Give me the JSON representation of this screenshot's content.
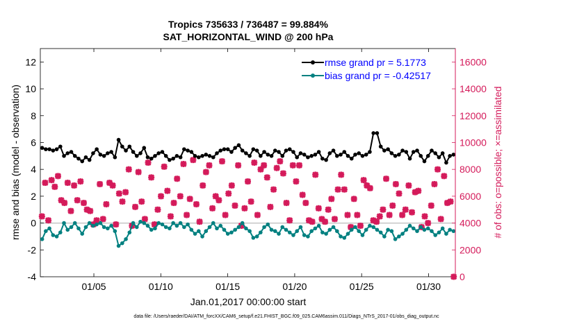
{
  "chart_data": {
    "type": "line",
    "title_line1": "Tropics 735633 / 736487 = 99.884%",
    "title_line2": "SAT_HORIZONTAL_WIND @ 200 hPa",
    "xlabel": "Jan.01,2017 00:00:00 start",
    "ylabel_left": "rmse and bias (model - observation)",
    "ylabel_right": "# of obs: o=possible; ×=assimilated",
    "footnote": "data file: /Users/raeder/DAI/ATM_forcXX/CAM6_setup/f.e21.FHIST_BGC.f09_025.CAM6assim.011/Diags_NTrS_2017-01/obs_diag_output.nc",
    "xlim": [
      1,
      32
    ],
    "x_tick_values": [
      5,
      10,
      15,
      20,
      25,
      30
    ],
    "x_tick_labels": [
      "01/05",
      "01/10",
      "01/15",
      "01/20",
      "01/25",
      "01/30"
    ],
    "ylim_left": [
      -4,
      13
    ],
    "y_left_tick_values": [
      -4,
      -2,
      0,
      2,
      4,
      6,
      8,
      10,
      12
    ],
    "y_left_tick_labels": [
      "-4",
      "-2",
      "0",
      "2",
      "4",
      "6",
      "8",
      "10",
      "12"
    ],
    "ylim_right": [
      0,
      17000
    ],
    "y_right_tick_values": [
      0,
      2000,
      4000,
      6000,
      8000,
      10000,
      12000,
      14000,
      16000
    ],
    "y_right_tick_labels": [
      "0",
      "2000",
      "4000",
      "6000",
      "8000",
      "10000",
      "12000",
      "14000",
      "16000"
    ],
    "legend": [
      "rmse grand pr = 5.1773",
      "bias grand pr = -0.42517"
    ],
    "legend_position": "top-right",
    "series": [
      {
        "name": "rmse",
        "color": "#000000",
        "values": [
          5.6,
          5.5,
          5.5,
          5.4,
          5.5,
          5.7,
          5.0,
          5.2,
          5.3,
          5.0,
          4.8,
          4.6,
          4.9,
          4.7,
          5.2,
          5.5,
          5.1,
          5.0,
          5.2,
          5.3,
          4.9,
          6.2,
          5.7,
          5.4,
          5.7,
          5.3,
          5.0,
          5.2,
          5.6,
          4.9,
          4.8,
          5.0,
          5.2,
          5.3,
          5.0,
          4.7,
          4.8,
          5.0,
          4.9,
          5.5,
          5.4,
          5.3,
          5.0,
          4.9,
          5.0,
          5.1,
          5.0,
          4.9,
          5.2,
          5.4,
          5.5,
          5.5,
          5.3,
          5.6,
          5.8,
          5.4,
          5.2,
          5.0,
          5.5,
          5.4,
          5.0,
          5.3,
          5.1,
          5.0,
          5.4,
          5.3,
          5.0,
          5.4,
          5.5,
          5.3,
          4.9,
          5.2,
          5.1,
          4.9,
          5.0,
          5.1,
          5.3,
          4.8,
          4.7,
          5.2,
          5.4,
          5.0,
          5.1,
          5.3,
          5.0,
          4.8,
          5.1,
          5.2,
          5.0,
          5.1,
          5.3,
          6.7,
          6.7,
          5.7,
          5.4,
          5.5,
          5.2,
          5.0,
          5.1,
          5.4,
          5.3,
          4.8,
          5.3,
          5.4,
          5.0,
          4.6,
          5.0,
          5.4,
          5.2,
          4.9,
          5.2,
          4.5,
          5.0,
          5.1
        ],
        "marker": "dot"
      },
      {
        "name": "bias",
        "color": "#008080",
        "values": [
          -1.2,
          -0.6,
          -0.4,
          -0.9,
          -1.0,
          -0.7,
          0.0,
          -0.5,
          -0.3,
          0.0,
          -0.4,
          -0.8,
          -0.3,
          0.0,
          -0.2,
          -0.1,
          0.0,
          -0.3,
          -0.4,
          -0.2,
          -0.6,
          -1.7,
          -1.5,
          -1.2,
          -0.7,
          0.0,
          -0.3,
          0.1,
          0.0,
          -0.2,
          -0.5,
          -0.4,
          0.0,
          -0.1,
          -0.3,
          -0.4,
          0.0,
          -0.2,
          0.0,
          -0.3,
          -0.1,
          -0.5,
          -0.8,
          -0.6,
          -1.0,
          -0.6,
          -0.3,
          0.0,
          -0.4,
          -0.2,
          -0.5,
          -0.8,
          -0.7,
          -0.5,
          -0.3,
          0.0,
          -0.4,
          -0.6,
          -1.1,
          -1.0,
          -0.7,
          -0.3,
          -0.1,
          -0.5,
          -0.6,
          -0.8,
          -0.3,
          -0.5,
          -0.7,
          -0.9,
          -0.6,
          -0.3,
          -0.9,
          -1.0,
          -0.6,
          -0.4,
          -0.2,
          -0.7,
          -0.8,
          -0.5,
          -0.3,
          -0.6,
          -1.0,
          -1.1,
          -0.8,
          -0.5,
          -0.3,
          -0.6,
          -0.9,
          -0.5,
          -0.2,
          -0.3,
          -0.5,
          -0.7,
          -1.0,
          -0.5,
          -0.6,
          -1.2,
          -1.0,
          -0.8,
          -0.5,
          -0.2,
          -0.4,
          -0.6,
          -0.3,
          -0.5,
          -0.4,
          -0.6,
          -0.9,
          -0.7,
          -0.4,
          -0.8,
          -0.5,
          -0.6
        ],
        "marker": "dot"
      },
      {
        "name": "# of obs assimilated",
        "color": "#d41a5a",
        "axis": "right",
        "marker": "cross",
        "values": [
          4500,
          7000,
          4200,
          7200,
          6700,
          7500,
          5700,
          5500,
          7000,
          4900,
          6800,
          5700,
          7100,
          5500,
          5000,
          4900,
          3900,
          4200,
          6900,
          4300,
          5400,
          7000,
          6800,
          3900,
          6200,
          5600,
          6300,
          8000,
          3800,
          5200,
          7800,
          5600,
          4300,
          8500,
          7400,
          3900,
          5000,
          6000,
          8200,
          6400,
          4500,
          5500,
          7300,
          6000,
          8400,
          4600,
          5800,
          8700,
          5400,
          4100,
          6800,
          7800,
          8300,
          5100,
          6000,
          5700,
          8600,
          4600,
          6200,
          6800,
          5300,
          8300,
          3800,
          5100,
          7100,
          5600,
          8500,
          4600,
          8000,
          8300,
          7400,
          5200,
          6500,
          8100,
          8600,
          7700,
          5500,
          4200,
          8300,
          7100,
          8300,
          6100,
          5500,
          4200,
          4100,
          7600,
          5100,
          4300,
          4100,
          5000,
          5800,
          4300,
          6500,
          7600,
          6500,
          4600,
          3700,
          5800,
          4600,
          3800,
          7200,
          6800,
          6600,
          4200,
          4100,
          4500,
          5000,
          7300,
          4600,
          5300,
          6900,
          6200,
          4600,
          5000,
          6800,
          4800,
          6300,
          6400,
          3700,
          4500,
          4000,
          5300,
          6900,
          8000,
          4300,
          7500,
          5500,
          5600,
          0
        ]
      }
    ]
  }
}
